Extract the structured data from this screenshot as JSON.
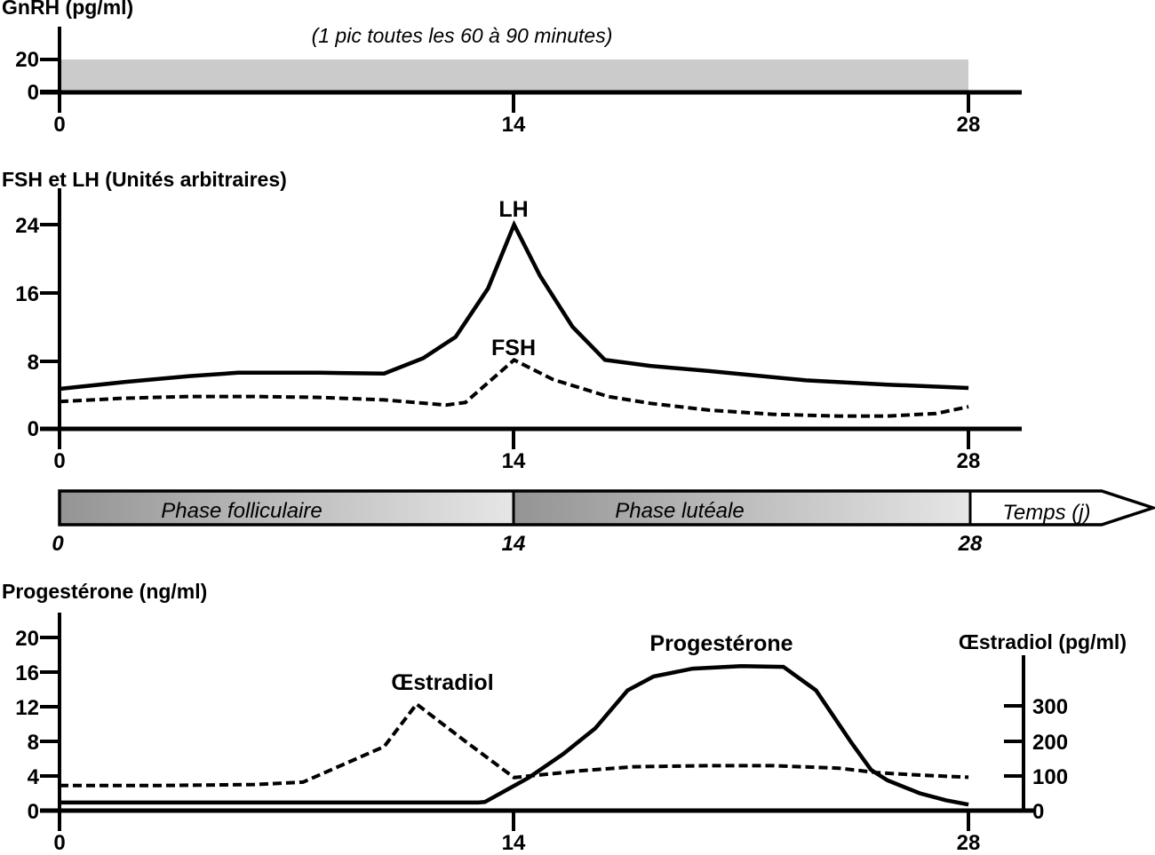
{
  "figure": {
    "background": "#ffffff",
    "ink": "#000000"
  },
  "chart_data": {
    "type": "line",
    "x_range_days": [
      0,
      28
    ],
    "gnrh": {
      "type": "area",
      "title": "GnRH (pg/ml)",
      "note": "(1 pic toutes les 60 à 90 minutes)",
      "y_ticks": [
        20,
        0
      ],
      "x_ticks": [
        0,
        14,
        28
      ],
      "band": {
        "y_from": 0,
        "y_to": 20,
        "x_from": 0,
        "x_to": 28,
        "color": "#cbcbcb"
      }
    },
    "fsh_lh": {
      "type": "line",
      "title": "FSH et LH (Unités arbitraires)",
      "y_ticks": [
        24,
        16,
        8,
        0
      ],
      "x_ticks": [
        0,
        14,
        28
      ],
      "ylim": [
        0,
        26
      ],
      "series": [
        {
          "name": "LH",
          "style": "solid",
          "points": [
            [
              0,
              4.7
            ],
            [
              2,
              5.5
            ],
            [
              4,
              6.2
            ],
            [
              5.5,
              6.6
            ],
            [
              8,
              6.6
            ],
            [
              10,
              6.5
            ],
            [
              11.2,
              8.3
            ],
            [
              12.2,
              10.8
            ],
            [
              13.2,
              16.5
            ],
            [
              14,
              24
            ],
            [
              14.8,
              18
            ],
            [
              15.8,
              12
            ],
            [
              16.8,
              8.1
            ],
            [
              18.2,
              7.4
            ],
            [
              20,
              6.8
            ],
            [
              23,
              5.7
            ],
            [
              25.5,
              5.2
            ],
            [
              28,
              4.8
            ]
          ]
        },
        {
          "name": "FSH",
          "style": "dashed",
          "points": [
            [
              0,
              3.2
            ],
            [
              2,
              3.6
            ],
            [
              4,
              3.8
            ],
            [
              6,
              3.8
            ],
            [
              8,
              3.7
            ],
            [
              10,
              3.4
            ],
            [
              11.9,
              2.8
            ],
            [
              12.5,
              3.1
            ],
            [
              14,
              8.1
            ],
            [
              15.2,
              5.8
            ],
            [
              16.9,
              3.8
            ],
            [
              18.2,
              3.0
            ],
            [
              20,
              2.2
            ],
            [
              22,
              1.7
            ],
            [
              24,
              1.5
            ],
            [
              25.5,
              1.5
            ],
            [
              27,
              1.8
            ],
            [
              28,
              2.6
            ]
          ]
        }
      ]
    },
    "phase_bar": {
      "segments": [
        {
          "label": "Phase folliculaire",
          "from": 0,
          "to": 14
        },
        {
          "label": "Phase lutéale",
          "from": 14,
          "to": 28
        }
      ],
      "arrow_label": "Temps (j)",
      "x_ticks": [
        0,
        14,
        28
      ],
      "gradient": {
        "start": "#949494",
        "end": "#e6e6e6"
      }
    },
    "progesterone_oestradiol": {
      "type": "line",
      "title": "Progestérone (ng/ml)",
      "right_axis_title": "Œstradiol (pg/ml)",
      "left_ticks": [
        20,
        16,
        12,
        8,
        4,
        0
      ],
      "right_ticks": [
        300,
        200,
        100,
        0
      ],
      "x_ticks": [
        0,
        14,
        28
      ],
      "left_ylim": [
        0,
        22
      ],
      "right_ylim": [
        0,
        430
      ],
      "series": [
        {
          "name": "Progestérone",
          "axis": "left",
          "style": "solid",
          "points": [
            [
              0,
              0.93
            ],
            [
              12.9,
              0.93
            ],
            [
              13.1,
              1.0
            ],
            [
              14.45,
              3.8
            ],
            [
              15.5,
              6.5
            ],
            [
              16.5,
              9.5
            ],
            [
              17.5,
              13.9
            ],
            [
              18.3,
              15.5
            ],
            [
              19.5,
              16.4
            ],
            [
              21,
              16.7
            ],
            [
              22.3,
              16.6
            ],
            [
              23.3,
              13.9
            ],
            [
              24.4,
              7.8
            ],
            [
              25,
              4.7
            ],
            [
              25.5,
              3.5
            ],
            [
              26.5,
              2.0
            ],
            [
              27.3,
              1.2
            ],
            [
              28,
              0.7
            ]
          ]
        },
        {
          "name": "Œstradiol",
          "axis": "right",
          "style": "dashed",
          "points": [
            [
              0,
              72
            ],
            [
              3,
              72
            ],
            [
              6,
              75
            ],
            [
              7.5,
              82
            ],
            [
              10,
              184
            ],
            [
              11,
              306
            ],
            [
              12.5,
              199
            ],
            [
              14,
              95
            ],
            [
              16,
              114
            ],
            [
              17.7,
              126
            ],
            [
              20,
              129
            ],
            [
              22,
              129
            ],
            [
              24,
              122
            ],
            [
              25.2,
              109
            ],
            [
              26.5,
              102
            ],
            [
              28,
              96
            ]
          ]
        }
      ]
    }
  }
}
